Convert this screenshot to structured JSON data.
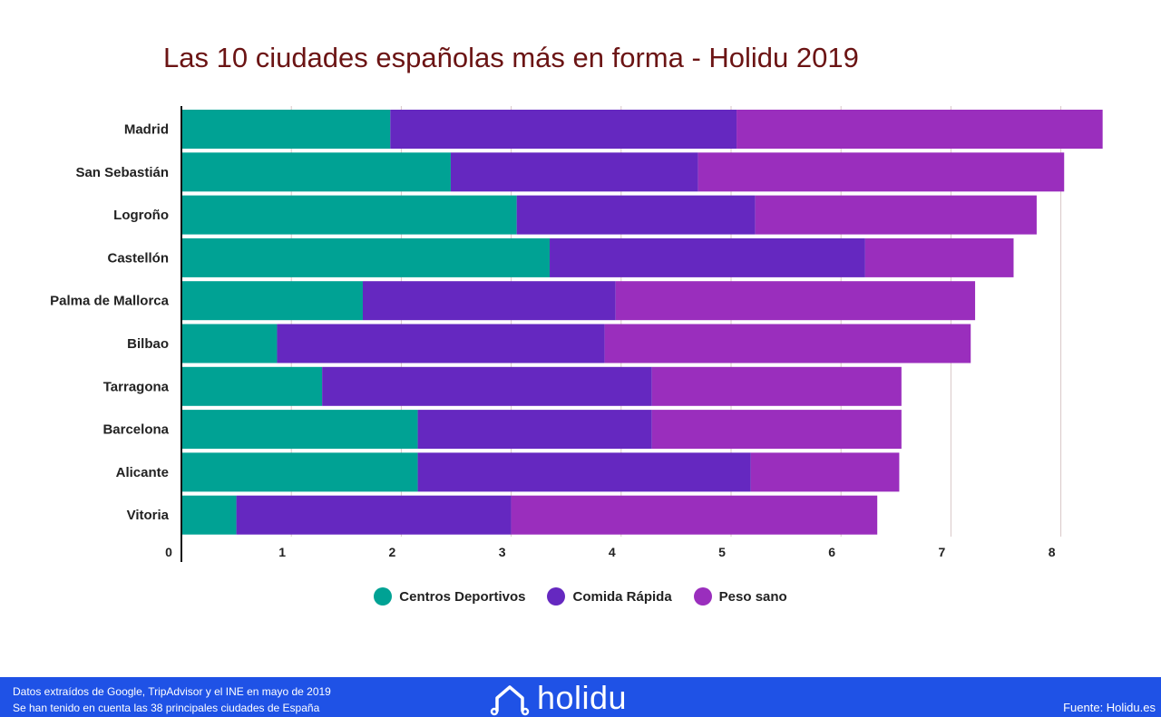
{
  "chart_data": {
    "type": "bar",
    "orientation": "horizontal",
    "stacked": true,
    "title": "Las 10 ciudades españolas más en forma - Holidu 2019",
    "categories": [
      "Madrid",
      "San Sebastián",
      "Logroño",
      "Castellón",
      "Palma de Mallorca",
      "Bilbao",
      "Tarragona",
      "Barcelona",
      "Alicante",
      "Vitoria"
    ],
    "series": [
      {
        "name": "Centros Deportivos",
        "color": "#00a294",
        "values": [
          1.9,
          2.45,
          3.05,
          3.35,
          1.65,
          0.87,
          1.28,
          2.15,
          2.15,
          0.5
        ]
      },
      {
        "name": "Comida Rápida",
        "color": "#6528c0",
        "values": [
          3.15,
          2.25,
          2.17,
          2.87,
          2.3,
          2.98,
          3.0,
          2.13,
          3.03,
          2.5
        ]
      },
      {
        "name": "Peso sano",
        "color": "#9a2ebd",
        "values": [
          3.33,
          3.33,
          2.56,
          1.35,
          3.27,
          3.33,
          2.27,
          2.27,
          1.35,
          3.33
        ]
      }
    ],
    "xlim": [
      0,
      8.4
    ],
    "x_ticks": [
      "0",
      "1",
      "2",
      "3",
      "4",
      "5",
      "6",
      "7",
      "8"
    ],
    "grid": true,
    "legend_position": "bottom"
  },
  "footer": {
    "note1": "Datos extraídos de Google, TripAdvisor y el INE en mayo de 2019",
    "note2": "Se han tenido en cuenta las 38 principales ciudades de España",
    "brand": "holidu",
    "source": "Fuente: Holidu.es"
  }
}
